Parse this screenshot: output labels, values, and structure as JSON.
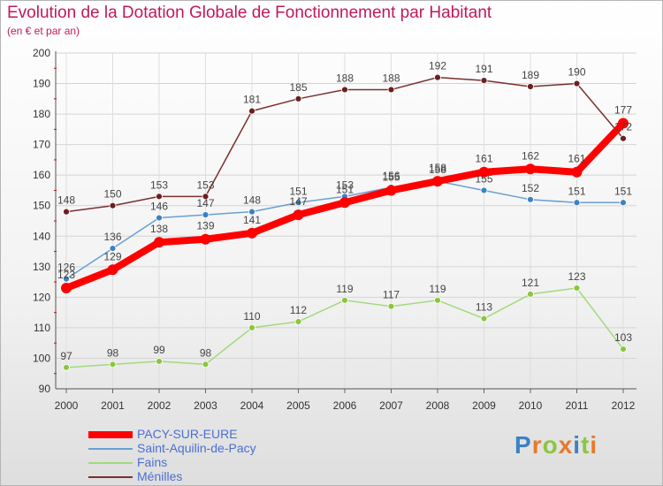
{
  "title": "Evolution de la Dotation Globale de Fonctionnement par Habitant",
  "subtitle": "(en € et par an)",
  "logo": {
    "text": "Proxiti",
    "letters": [
      {
        "ch": "P",
        "color": "#3b82c4"
      },
      {
        "ch": "r",
        "color": "#e8792b"
      },
      {
        "ch": "o",
        "color": "#8cc63f"
      },
      {
        "ch": "x",
        "color": "#e8792b"
      },
      {
        "ch": "i",
        "color": "#3b82c4"
      },
      {
        "ch": "t",
        "color": "#8cc63f"
      },
      {
        "ch": "i",
        "color": "#e8792b"
      }
    ]
  },
  "chart_data": {
    "type": "line",
    "title": "Evolution de la Dotation Globale de Fonctionnement par Habitant",
    "subtitle": "(en € et par an)",
    "xlabel": "",
    "ylabel": "",
    "categories": [
      "2000",
      "2001",
      "2002",
      "2003",
      "2004",
      "2005",
      "2006",
      "2007",
      "2008",
      "2009",
      "2010",
      "2011",
      "2012"
    ],
    "ylim": [
      90,
      200
    ],
    "yticks": [
      90,
      100,
      110,
      120,
      130,
      140,
      150,
      160,
      170,
      180,
      190,
      200
    ],
    "grid": true,
    "legend_position": "bottom-left",
    "series": [
      {
        "name": "PACY-SUR-EURE",
        "color": "#ff0000",
        "values": [
          123,
          129,
          138,
          139,
          141,
          147,
          151,
          155,
          158,
          161,
          162,
          161,
          177
        ]
      },
      {
        "name": "Saint-Aquilin-de-Pacy",
        "color": "#6a9fd4",
        "values": [
          126,
          136,
          146,
          147,
          148,
          151,
          153,
          156,
          158,
          155,
          152,
          151,
          151
        ]
      },
      {
        "name": "Fains",
        "color": "#a3d97d",
        "values": [
          97,
          98,
          99,
          98,
          110,
          112,
          119,
          117,
          119,
          113,
          121,
          123,
          103
        ]
      },
      {
        "name": "Ménilles",
        "color": "#7b2f2f",
        "values": [
          148,
          150,
          153,
          153,
          181,
          185,
          188,
          188,
          192,
          191,
          189,
          190,
          172
        ]
      }
    ]
  }
}
